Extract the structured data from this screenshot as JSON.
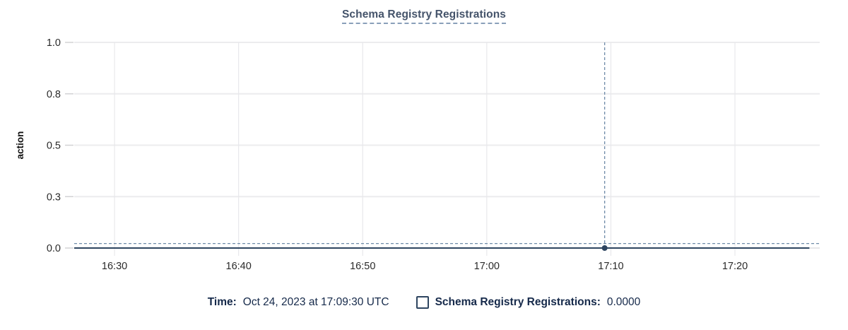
{
  "header": {
    "title": "Schema Registry Registrations"
  },
  "chart_data": {
    "type": "line",
    "title": "Schema Registry Registrations",
    "xlabel": "",
    "ylabel": "action",
    "x_domain": [
      "16:26:45",
      "17:26:50"
    ],
    "y_domain": [
      0,
      1
    ],
    "x_ticks": [
      {
        "label": "16:30",
        "t": "16:30:00"
      },
      {
        "label": "16:40",
        "t": "16:40:00"
      },
      {
        "label": "16:50",
        "t": "16:50:00"
      },
      {
        "label": "17:00",
        "t": "17:00:00"
      },
      {
        "label": "17:10",
        "t": "17:10:00"
      },
      {
        "label": "17:20",
        "t": "17:20:00"
      }
    ],
    "y_ticks": [
      {
        "label": "0.0",
        "v": 0
      },
      {
        "label": "0.3",
        "v": 0.25
      },
      {
        "label": "0.5",
        "v": 0.5
      },
      {
        "label": "0.8",
        "v": 0.75
      },
      {
        "label": "1.0",
        "v": 1
      }
    ],
    "grid": true,
    "legend_position": "bottom",
    "series": [
      {
        "name": "Schema Registry Registrations",
        "color": "#2e4560",
        "value": 0,
        "start": "16:26:45",
        "end": "17:26:00",
        "points": [
          {
            "t": "17:09:30",
            "v": 0
          }
        ]
      }
    ],
    "crosshair": {
      "t": "17:09:30",
      "v": 0,
      "cursor_v": 0.022,
      "time_display": "Oct 24, 2023 at 17:09:30 UTC",
      "value_display": "0.0000"
    }
  },
  "legend": {
    "time_label": "Time:",
    "time_value": "Oct 24, 2023 at 17:09:30 UTC",
    "series_label": "Schema Registry Registrations:",
    "series_value": "0.0000",
    "checkbox_checked": false
  },
  "colors": {
    "series": "#2e4560",
    "crosshair": "#6f8ba8",
    "title_text": "#44536a",
    "title_underline": "#8a9fba",
    "legend_text": "#15294a",
    "grid": "#ececee",
    "tick_label": "#2a2a2a"
  }
}
